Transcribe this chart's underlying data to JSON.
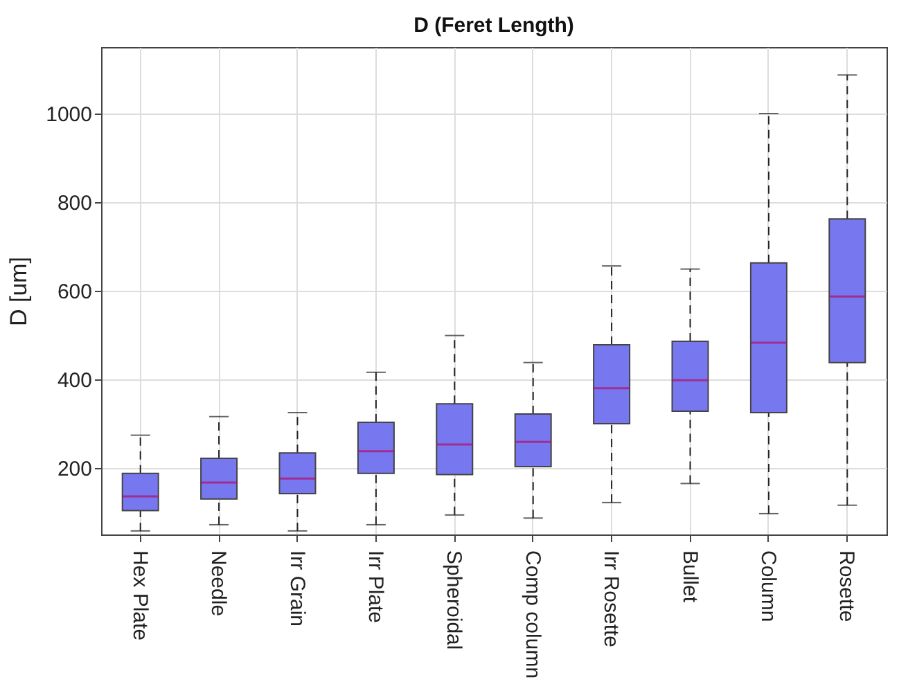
{
  "chart_data": {
    "type": "box",
    "title": "D (Feret Length)",
    "ylabel": "D [um]",
    "categories": [
      "Hex Plate",
      "Needle",
      "Irr  Grain",
      "Irr  Plate",
      "Spheroidal",
      "Comp column",
      "Irr Rosette",
      "Bullet",
      "Column",
      "Rosette"
    ],
    "color": "#7777f0",
    "boxes": [
      {
        "low": 58,
        "q1": 104,
        "median": 136,
        "q3": 188,
        "high": 274
      },
      {
        "low": 72,
        "q1": 130,
        "median": 167,
        "q3": 222,
        "high": 316
      },
      {
        "low": 58,
        "q1": 142,
        "median": 176,
        "q3": 234,
        "high": 325
      },
      {
        "low": 72,
        "q1": 188,
        "median": 238,
        "q3": 303,
        "high": 416
      },
      {
        "low": 94,
        "q1": 185,
        "median": 253,
        "q3": 345,
        "high": 499
      },
      {
        "low": 87,
        "q1": 203,
        "median": 259,
        "q3": 322,
        "high": 438
      },
      {
        "low": 122,
        "q1": 300,
        "median": 380,
        "q3": 478,
        "high": 656
      },
      {
        "low": 165,
        "q1": 328,
        "median": 398,
        "q3": 486,
        "high": 649
      },
      {
        "low": 97,
        "q1": 325,
        "median": 483,
        "q3": 663,
        "high": 1000
      },
      {
        "low": 116,
        "q1": 438,
        "median": 587,
        "q3": 762,
        "high": 1087
      }
    ],
    "ylim": [
      50,
      1150
    ],
    "yticks": [
      200,
      400,
      600,
      800,
      1000
    ],
    "grid": true
  }
}
